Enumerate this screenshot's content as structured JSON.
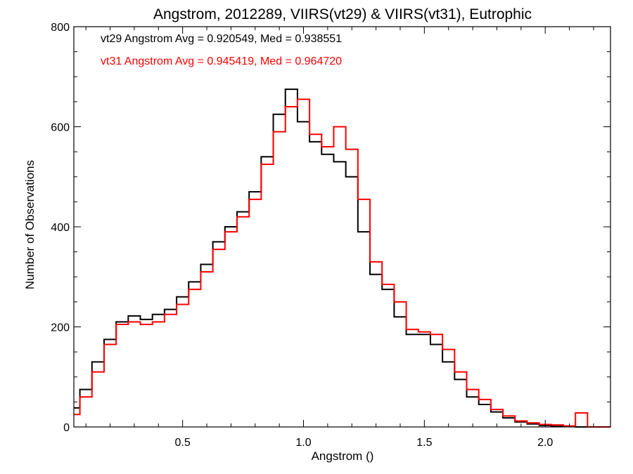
{
  "chart_data": {
    "type": "line",
    "title": "Angstrom, 2012289, VIIRS(vt29) & VIIRS(vt31), Eutrophic",
    "xlabel": "Angstrom ()",
    "ylabel": "Number of Observations",
    "xlim": [
      0.05,
      2.27
    ],
    "ylim": [
      0,
      800
    ],
    "x_ticks": [
      0.5,
      1.0,
      1.5,
      2.0
    ],
    "x_tick_labels": [
      "0.5",
      "1.0",
      "1.5",
      "2.0"
    ],
    "y_ticks": [
      0,
      200,
      400,
      600,
      800
    ],
    "y_tick_labels": [
      "0",
      "200",
      "400",
      "600",
      "800"
    ],
    "grid": false,
    "legend_position": "top-left",
    "annotations": [
      {
        "text": "vt29 Angstrom Avg = 0.920549, Med = 0.938551",
        "color": "#000000"
      },
      {
        "text": "vt31 Angstrom Avg = 0.945419, Med = 0.964720",
        "color": "#ff0000"
      }
    ],
    "series": [
      {
        "color": "#000000",
        "x": [
          0.05,
          0.1,
          0.15,
          0.2,
          0.25,
          0.3,
          0.35,
          0.4,
          0.45,
          0.5,
          0.55,
          0.6,
          0.65,
          0.7,
          0.75,
          0.8,
          0.85,
          0.9,
          0.95,
          1.0,
          1.05,
          1.1,
          1.15,
          1.2,
          1.25,
          1.3,
          1.35,
          1.4,
          1.45,
          1.5,
          1.55,
          1.6,
          1.65,
          1.7,
          1.75,
          1.8,
          1.85,
          1.9,
          1.95,
          2.0,
          2.05,
          2.1,
          2.15,
          2.2,
          2.25
        ],
        "values": [
          38,
          75,
          130,
          175,
          210,
          222,
          215,
          225,
          235,
          260,
          290,
          325,
          370,
          400,
          430,
          470,
          540,
          625,
          675,
          610,
          570,
          545,
          530,
          500,
          390,
          305,
          275,
          220,
          185,
          185,
          165,
          130,
          95,
          60,
          45,
          30,
          18,
          10,
          6,
          3,
          2,
          1,
          0,
          0,
          0
        ]
      },
      {
        "color": "#ff0000",
        "x": [
          0.05,
          0.1,
          0.15,
          0.2,
          0.25,
          0.3,
          0.35,
          0.4,
          0.45,
          0.5,
          0.55,
          0.6,
          0.65,
          0.7,
          0.75,
          0.8,
          0.85,
          0.9,
          0.95,
          1.0,
          1.05,
          1.1,
          1.15,
          1.2,
          1.25,
          1.3,
          1.35,
          1.4,
          1.45,
          1.5,
          1.55,
          1.6,
          1.65,
          1.7,
          1.75,
          1.8,
          1.85,
          1.9,
          1.95,
          2.0,
          2.05,
          2.1,
          2.15,
          2.2,
          2.25
        ],
        "values": [
          25,
          60,
          110,
          165,
          205,
          210,
          205,
          210,
          225,
          245,
          275,
          310,
          355,
          390,
          420,
          455,
          525,
          590,
          640,
          655,
          585,
          560,
          600,
          555,
          455,
          330,
          285,
          250,
          195,
          190,
          185,
          155,
          110,
          75,
          55,
          35,
          22,
          12,
          8,
          5,
          4,
          2,
          28,
          0,
          0
        ]
      }
    ]
  }
}
